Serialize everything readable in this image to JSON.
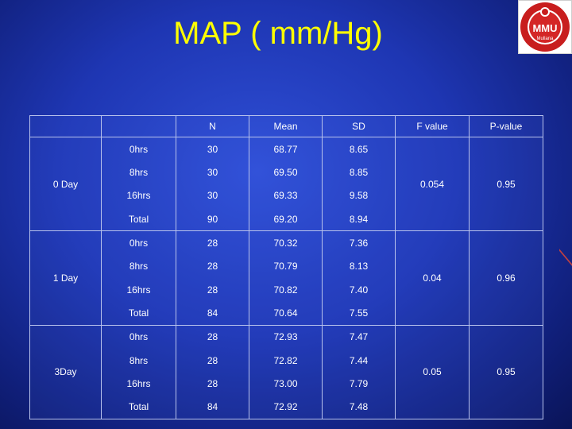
{
  "slide": {
    "title": "MAP ( mm/Hg)"
  },
  "logo": {
    "text": "MMU",
    "subtitle": "Mullana"
  },
  "table": {
    "headers": [
      "",
      "",
      "N",
      "Mean",
      "SD",
      "F value",
      "P-value"
    ],
    "groups": [
      {
        "label": "0 Day",
        "f_value": "0.054",
        "p_value": "0.95",
        "rows": [
          {
            "time": "0hrs",
            "n": "30",
            "mean": "68.77",
            "sd": "8.65"
          },
          {
            "time": "8hrs",
            "n": "30",
            "mean": "69.50",
            "sd": "8.85"
          },
          {
            "time": "16hrs",
            "n": "30",
            "mean": "69.33",
            "sd": "9.58"
          },
          {
            "time": "Total",
            "n": "90",
            "mean": "69.20",
            "sd": "8.94"
          }
        ]
      },
      {
        "label": "1 Day",
        "f_value": "0.04",
        "p_value": "0.96",
        "rows": [
          {
            "time": "0hrs",
            "n": "28",
            "mean": "70.32",
            "sd": "7.36"
          },
          {
            "time": "8hrs",
            "n": "28",
            "mean": "70.79",
            "sd": "8.13"
          },
          {
            "time": "16hrs",
            "n": "28",
            "mean": "70.82",
            "sd": "7.40"
          },
          {
            "time": "Total",
            "n": "84",
            "mean": "70.64",
            "sd": "7.55"
          }
        ]
      },
      {
        "label": "3Day",
        "f_value": "0.05",
        "p_value": "0.95",
        "rows": [
          {
            "time": "0hrs",
            "n": "28",
            "mean": "72.93",
            "sd": "7.47"
          },
          {
            "time": "8hrs",
            "n": "28",
            "mean": "72.82",
            "sd": "7.44"
          },
          {
            "time": "16hrs",
            "n": "28",
            "mean": "73.00",
            "sd": "7.79"
          },
          {
            "time": "Total",
            "n": "84",
            "mean": "72.92",
            "sd": "7.48"
          }
        ]
      }
    ]
  }
}
